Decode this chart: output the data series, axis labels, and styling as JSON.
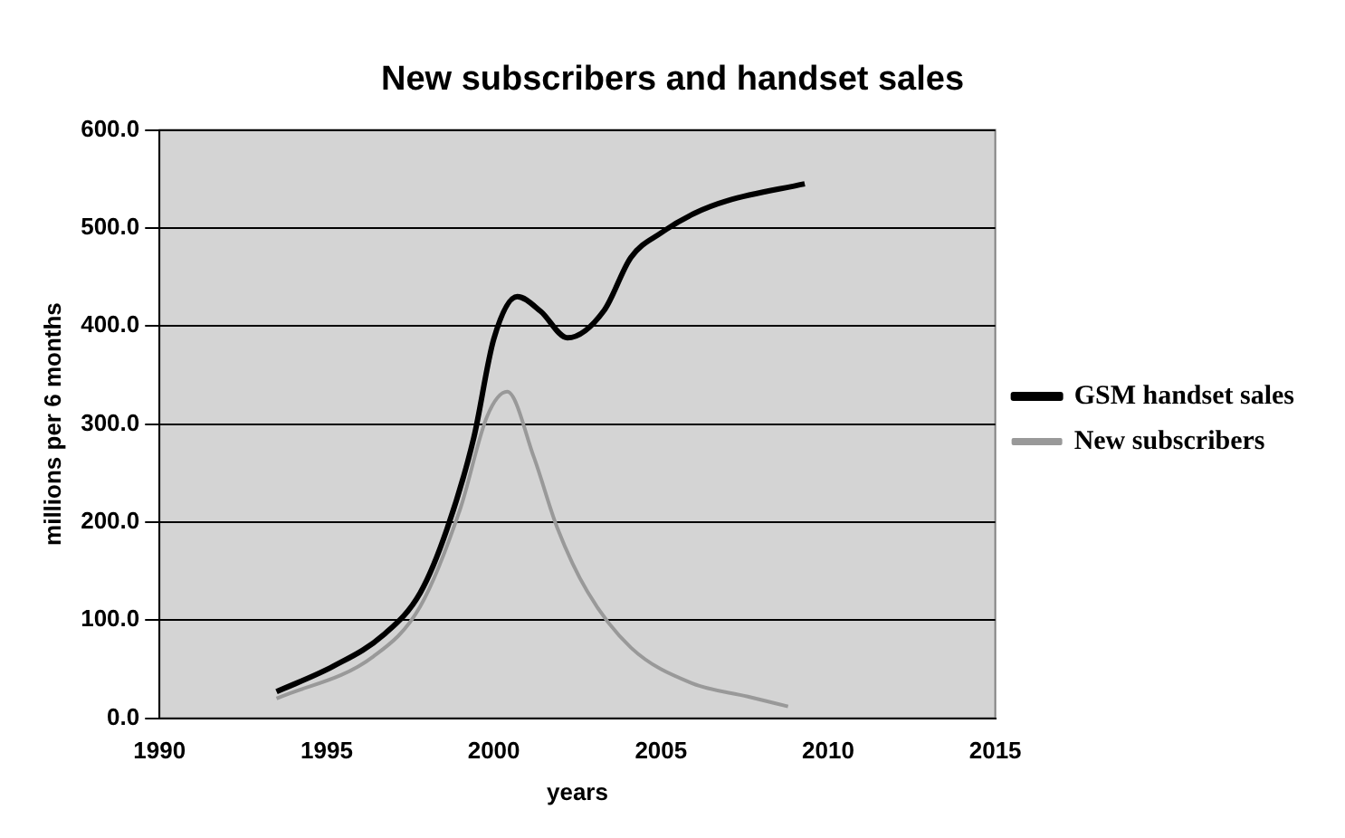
{
  "chart_data": {
    "type": "line",
    "title": "New subscribers and handset sales",
    "xlabel": "years",
    "ylabel": "millions per 6 months",
    "xlim": [
      1990,
      2015
    ],
    "xticks": [
      1990,
      1995,
      2000,
      2005,
      2010,
      2015
    ],
    "ylim": [
      0,
      600
    ],
    "yticks": [
      {
        "value": 0,
        "label": "0.0"
      },
      {
        "value": 100,
        "label": "100.0"
      },
      {
        "value": 200,
        "label": "200.0"
      },
      {
        "value": 300,
        "label": "300.0"
      },
      {
        "value": 400,
        "label": "400.0"
      },
      {
        "value": 500,
        "label": "500.0"
      },
      {
        "value": 600,
        "label": "600.0"
      }
    ],
    "grid": "y",
    "legend": "right",
    "marker": "none",
    "series": [
      {
        "name": "GSM handset sales",
        "color": "#000000",
        "x": [
          1993.5,
          1995.2,
          1996.7,
          1997.8,
          1998.6,
          1999.4,
          2000.0,
          2000.7,
          2001.4,
          2002.2,
          2003.3,
          2004.1,
          2005.0,
          2006.0,
          2007.0,
          2009.3
        ],
        "values": [
          27,
          53,
          85,
          128,
          193,
          286,
          387,
          430,
          415,
          388,
          416,
          470,
          495,
          515,
          528,
          545
        ]
      },
      {
        "name": "New subscribers",
        "color": "#999999",
        "x": [
          1993.5,
          1996.4,
          1997.8,
          1999.0,
          1999.8,
          2000.4,
          2001.2,
          2001.9,
          2002.8,
          2004.1,
          2005.9,
          2007.6,
          2008.8
        ],
        "values": [
          20,
          63,
          114,
          214,
          308,
          333,
          266,
          194,
          129,
          72,
          36,
          22,
          12
        ]
      }
    ]
  }
}
